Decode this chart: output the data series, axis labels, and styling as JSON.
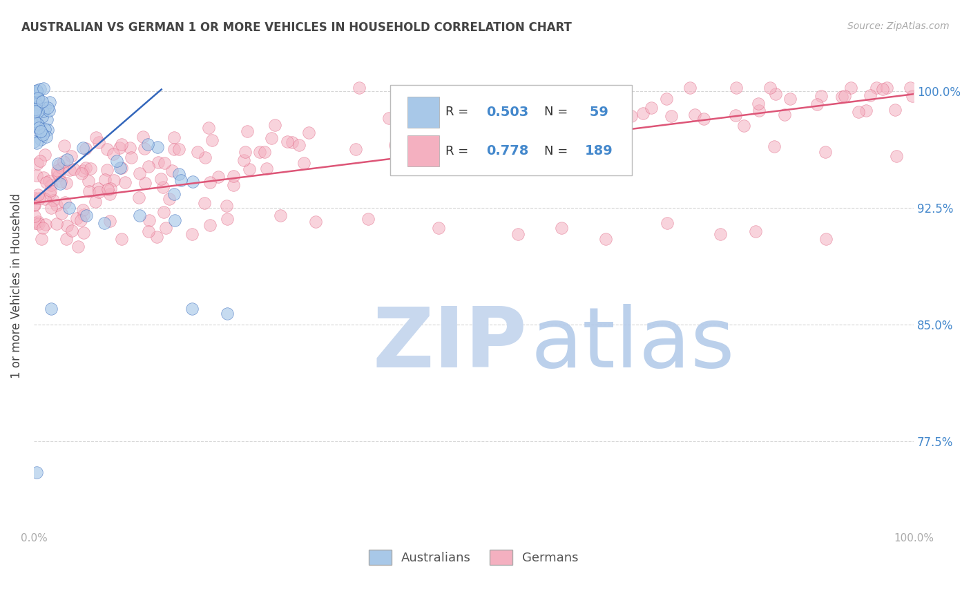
{
  "title": "AUSTRALIAN VS GERMAN 1 OR MORE VEHICLES IN HOUSEHOLD CORRELATION CHART",
  "source": "Source: ZipAtlas.com",
  "ylabel": "1 or more Vehicles in Household",
  "ytick_labels": [
    "77.5%",
    "85.0%",
    "92.5%",
    "100.0%"
  ],
  "ytick_values": [
    0.775,
    0.85,
    0.925,
    1.0
  ],
  "xmin": 0.0,
  "xmax": 1.0,
  "ymin": 0.718,
  "ymax": 1.032,
  "legend_labels": [
    "Australians",
    "Germans"
  ],
  "R_australian": 0.503,
  "N_australian": 59,
  "R_german": 0.778,
  "N_german": 189,
  "color_australian": "#a8c8e8",
  "color_german": "#f4b0c0",
  "trendline_color_australian": "#3366bb",
  "trendline_color_german": "#dd5577",
  "watermark_zip_color": "#c8d8ee",
  "watermark_atlas_color": "#b0c8e8",
  "background_color": "#ffffff",
  "grid_color": "#cccccc",
  "title_color": "#444444",
  "axis_label_color": "#444444",
  "ytick_color": "#4488cc",
  "source_color": "#aaaaaa",
  "xtick_color": "#aaaaaa"
}
